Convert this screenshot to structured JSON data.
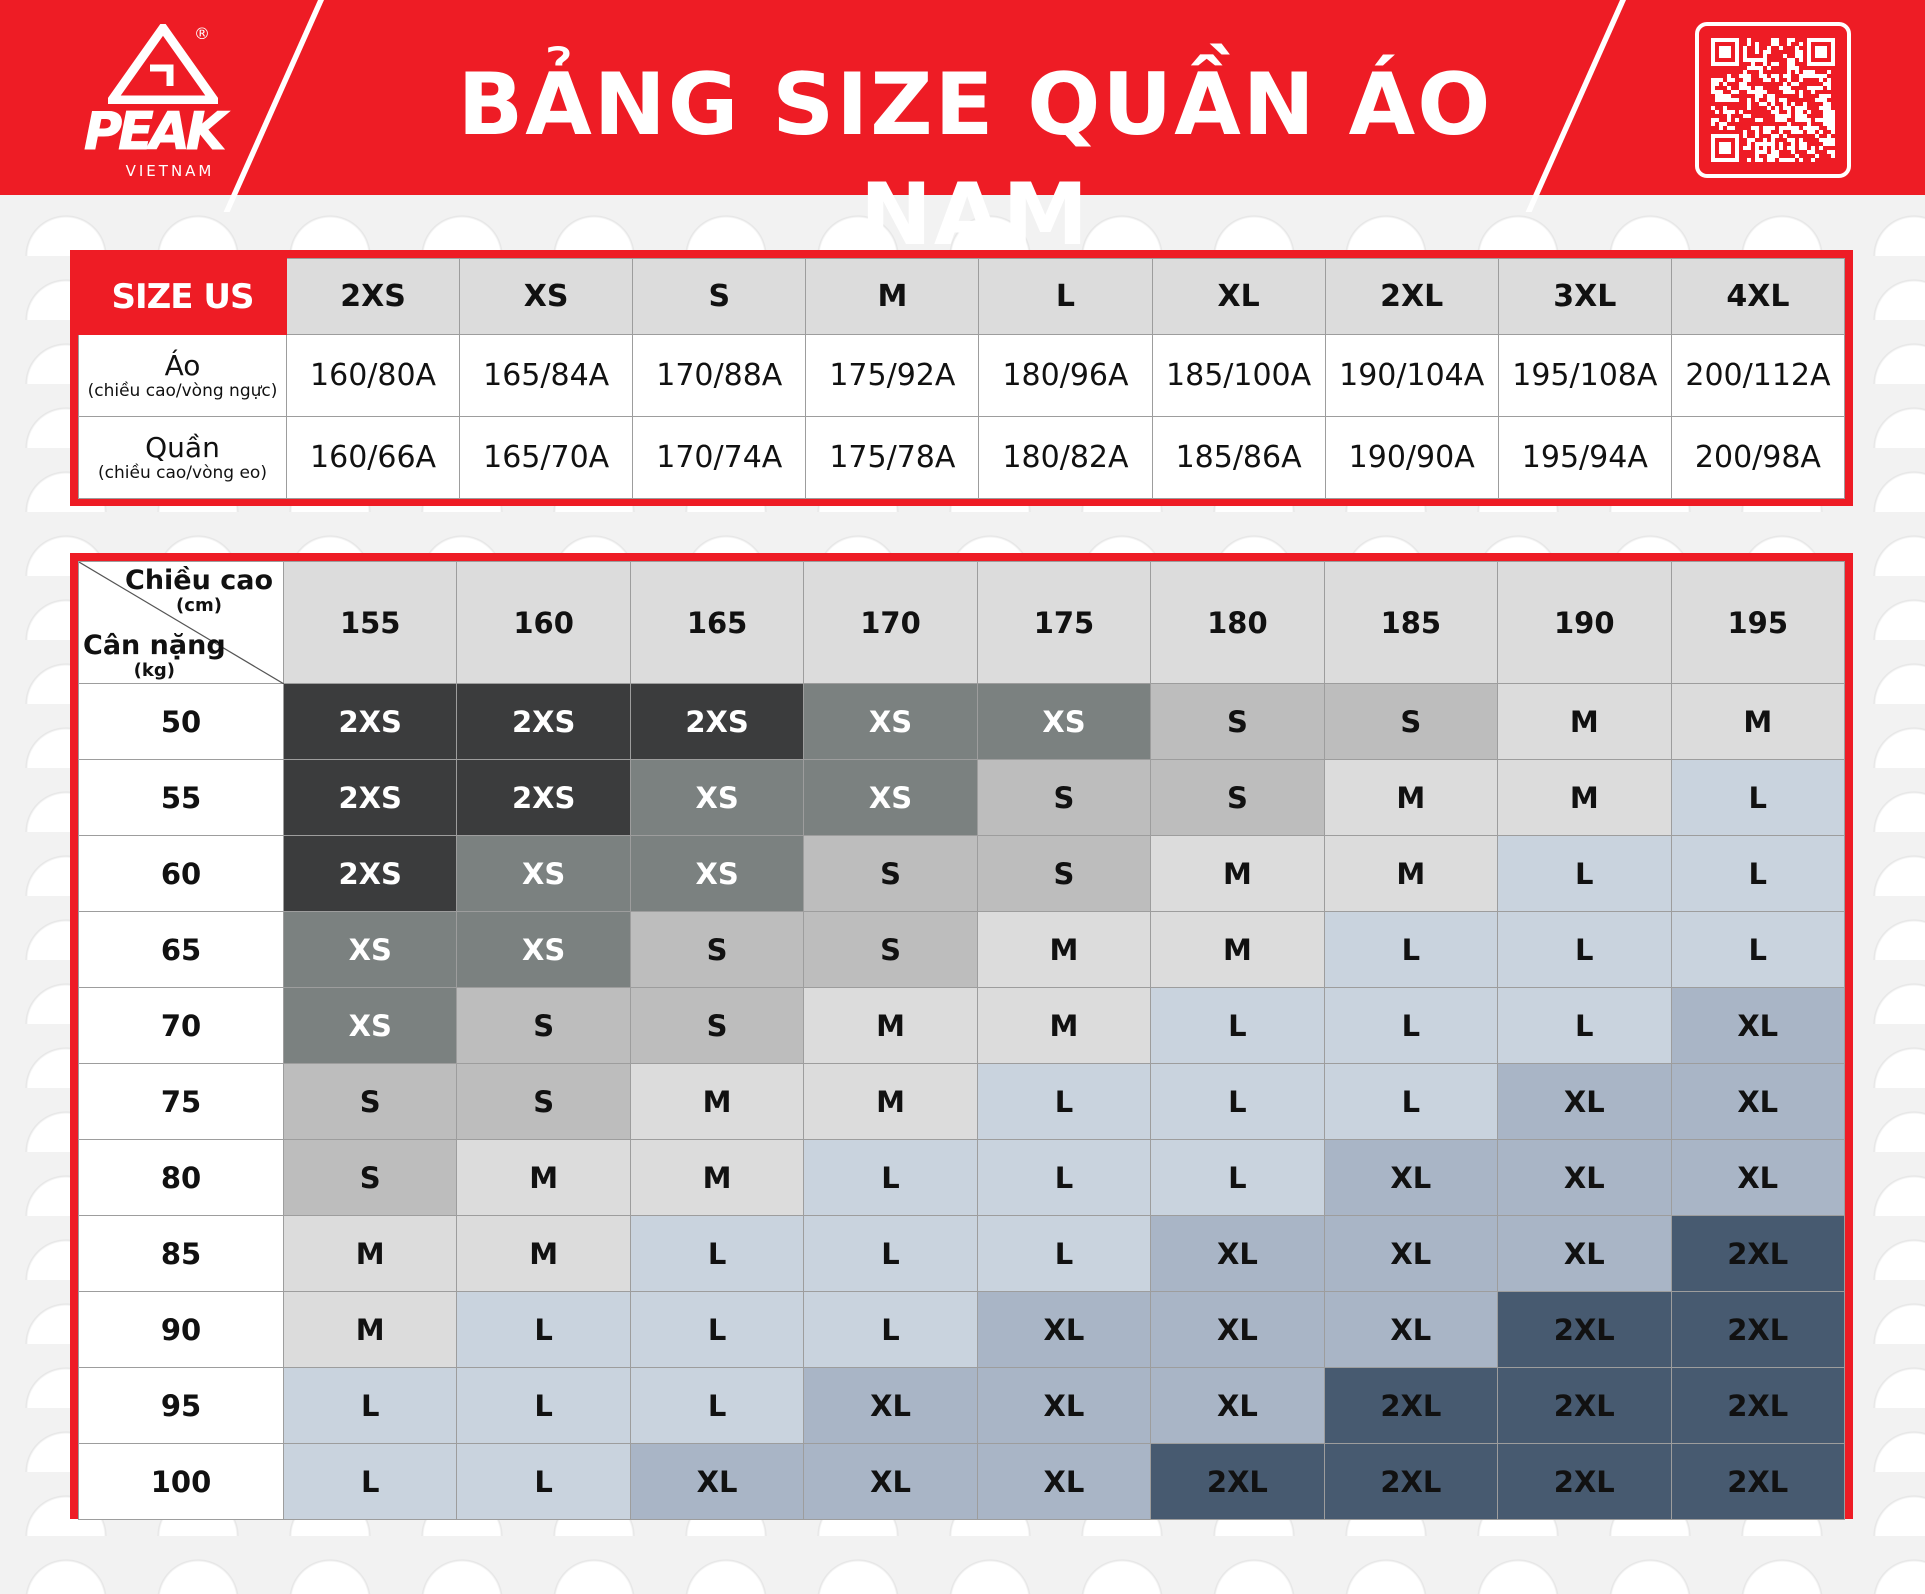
{
  "header": {
    "title": "BẢNG SIZE QUẦN ÁO NAM",
    "brand": "PEAK",
    "brand_sub": "VIETNAM",
    "registered_mark": "®",
    "qr_icon": "qr-code-icon"
  },
  "colors": {
    "brand_red": "#ee1c25",
    "size_2XS": "#3b3c3d",
    "size_XS": "#7b8180",
    "size_S": "#bdbdbd",
    "size_M": "#dcdcdc",
    "size_L": "#c9d3de",
    "size_XL": "#a9b5c6",
    "size_2XL": "#475a70"
  },
  "size_us_table": {
    "header_label": "SIZE US",
    "sizes": [
      "2XS",
      "XS",
      "S",
      "M",
      "L",
      "XL",
      "2XL",
      "3XL",
      "4XL"
    ],
    "rows": [
      {
        "label": "Áo",
        "sublabel": "(chiều cao/vòng ngực)",
        "values": [
          "160/80A",
          "165/84A",
          "170/88A",
          "175/92A",
          "180/96A",
          "185/100A",
          "190/104A",
          "195/108A",
          "200/112A"
        ]
      },
      {
        "label": "Quần",
        "sublabel": "(chiều cao/vòng eo)",
        "values": [
          "160/66A",
          "165/70A",
          "170/74A",
          "175/78A",
          "180/82A",
          "185/86A",
          "190/90A",
          "195/94A",
          "200/98A"
        ]
      }
    ]
  },
  "size_chart": {
    "corner_top": "Chiều cao",
    "corner_top_unit": "(cm)",
    "corner_bottom": "Cân nặng",
    "corner_bottom_unit": "(kg)",
    "heights": [
      "155",
      "160",
      "165",
      "170",
      "175",
      "180",
      "185",
      "190",
      "195"
    ],
    "rows": [
      {
        "weight": "50",
        "sizes": [
          "2XS",
          "2XS",
          "2XS",
          "XS",
          "XS",
          "S",
          "S",
          "M",
          "M"
        ]
      },
      {
        "weight": "55",
        "sizes": [
          "2XS",
          "2XS",
          "XS",
          "XS",
          "S",
          "S",
          "M",
          "M",
          "L"
        ]
      },
      {
        "weight": "60",
        "sizes": [
          "2XS",
          "XS",
          "XS",
          "S",
          "S",
          "M",
          "M",
          "L",
          "L"
        ]
      },
      {
        "weight": "65",
        "sizes": [
          "XS",
          "XS",
          "S",
          "S",
          "M",
          "M",
          "L",
          "L",
          "L"
        ]
      },
      {
        "weight": "70",
        "sizes": [
          "XS",
          "S",
          "S",
          "M",
          "M",
          "L",
          "L",
          "L",
          "XL"
        ]
      },
      {
        "weight": "75",
        "sizes": [
          "S",
          "S",
          "M",
          "M",
          "L",
          "L",
          "L",
          "XL",
          "XL"
        ]
      },
      {
        "weight": "80",
        "sizes": [
          "S",
          "M",
          "M",
          "L",
          "L",
          "L",
          "XL",
          "XL",
          "XL"
        ]
      },
      {
        "weight": "85",
        "sizes": [
          "M",
          "M",
          "L",
          "L",
          "L",
          "XL",
          "XL",
          "XL",
          "2XL"
        ]
      },
      {
        "weight": "90",
        "sizes": [
          "M",
          "L",
          "L",
          "L",
          "XL",
          "XL",
          "XL",
          "2XL",
          "2XL"
        ]
      },
      {
        "weight": "95",
        "sizes": [
          "L",
          "L",
          "L",
          "XL",
          "XL",
          "XL",
          "2XL",
          "2XL",
          "2XL"
        ]
      },
      {
        "weight": "100",
        "sizes": [
          "L",
          "L",
          "XL",
          "XL",
          "XL",
          "2XL",
          "2XL",
          "2XL",
          "2XL"
        ]
      }
    ]
  }
}
